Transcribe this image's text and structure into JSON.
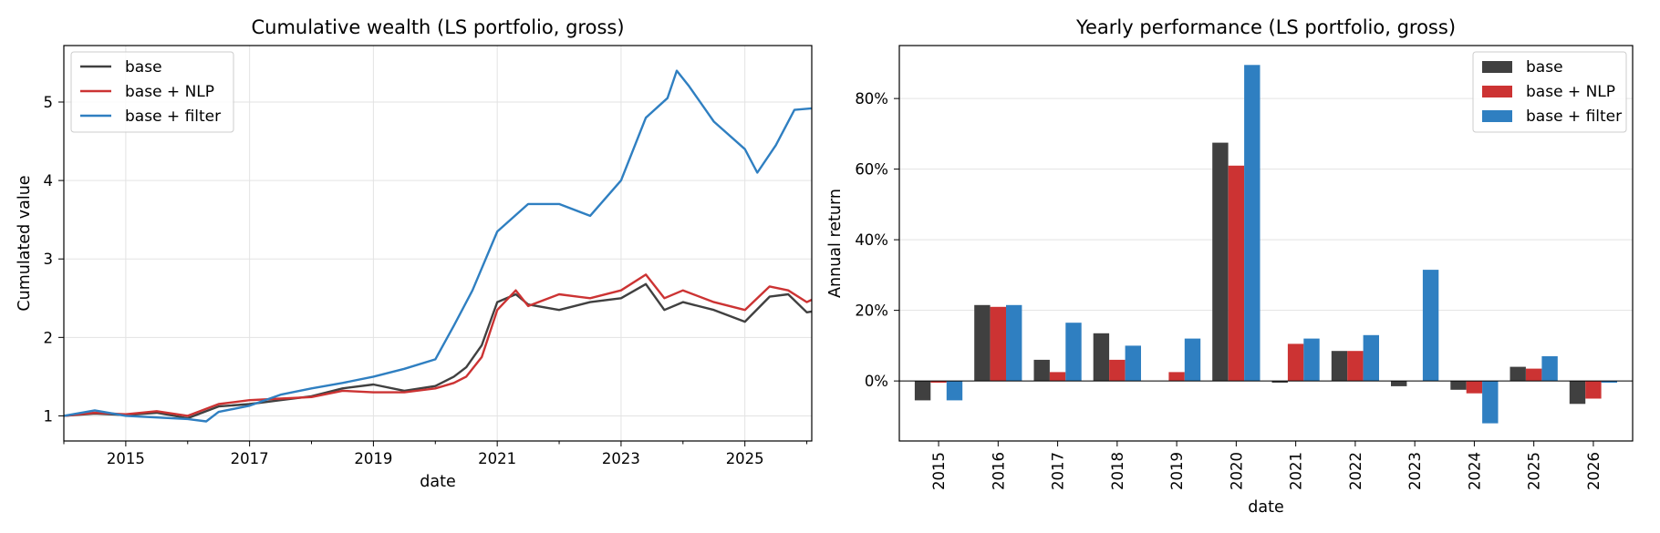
{
  "chart_data": [
    {
      "type": "line",
      "title": "Cumulative wealth (LS portfolio, gross)",
      "xlabel": "date",
      "ylabel": "Cumulated value",
      "xlim": [
        2014.0,
        2026.08
      ],
      "ylim": [
        0.68,
        5.72
      ],
      "xticks": [
        2015,
        2017,
        2019,
        2021,
        2023,
        2025
      ],
      "xtick_labels": [
        "2015",
        "2017",
        "2019",
        "2021",
        "2023",
        "2025"
      ],
      "yticks": [
        1,
        2,
        3,
        4,
        5
      ],
      "ytick_labels": [
        "1",
        "2",
        "3",
        "4",
        "5"
      ],
      "grid": true,
      "legend_position": "upper-left",
      "series": [
        {
          "name": "base",
          "color": "#404040",
          "points": [
            [
              2014.0,
              1.0
            ],
            [
              2014.5,
              1.03
            ],
            [
              2015.0,
              1.01
            ],
            [
              2015.5,
              1.04
            ],
            [
              2016.0,
              0.97
            ],
            [
              2016.5,
              1.12
            ],
            [
              2017.0,
              1.15
            ],
            [
              2017.5,
              1.2
            ],
            [
              2018.0,
              1.25
            ],
            [
              2018.5,
              1.35
            ],
            [
              2019.0,
              1.4
            ],
            [
              2019.5,
              1.32
            ],
            [
              2020.0,
              1.38
            ],
            [
              2020.3,
              1.5
            ],
            [
              2020.5,
              1.62
            ],
            [
              2020.75,
              1.9
            ],
            [
              2021.0,
              2.45
            ],
            [
              2021.3,
              2.55
            ],
            [
              2021.5,
              2.42
            ],
            [
              2022.0,
              2.35
            ],
            [
              2022.5,
              2.45
            ],
            [
              2023.0,
              2.5
            ],
            [
              2023.4,
              2.68
            ],
            [
              2023.7,
              2.35
            ],
            [
              2024.0,
              2.45
            ],
            [
              2024.5,
              2.35
            ],
            [
              2025.0,
              2.2
            ],
            [
              2025.4,
              2.52
            ],
            [
              2025.7,
              2.55
            ],
            [
              2026.0,
              2.32
            ],
            [
              2026.08,
              2.33
            ]
          ]
        },
        {
          "name": "base + NLP",
          "color": "#cc3333",
          "points": [
            [
              2014.0,
              1.0
            ],
            [
              2014.5,
              1.04
            ],
            [
              2015.0,
              1.02
            ],
            [
              2015.5,
              1.06
            ],
            [
              2016.0,
              1.0
            ],
            [
              2016.5,
              1.15
            ],
            [
              2017.0,
              1.2
            ],
            [
              2017.5,
              1.22
            ],
            [
              2018.0,
              1.24
            ],
            [
              2018.5,
              1.32
            ],
            [
              2019.0,
              1.3
            ],
            [
              2019.5,
              1.3
            ],
            [
              2020.0,
              1.35
            ],
            [
              2020.3,
              1.42
            ],
            [
              2020.5,
              1.5
            ],
            [
              2020.75,
              1.75
            ],
            [
              2021.0,
              2.35
            ],
            [
              2021.3,
              2.6
            ],
            [
              2021.5,
              2.4
            ],
            [
              2022.0,
              2.55
            ],
            [
              2022.5,
              2.5
            ],
            [
              2023.0,
              2.6
            ],
            [
              2023.4,
              2.8
            ],
            [
              2023.7,
              2.5
            ],
            [
              2024.0,
              2.6
            ],
            [
              2024.5,
              2.45
            ],
            [
              2025.0,
              2.35
            ],
            [
              2025.4,
              2.65
            ],
            [
              2025.7,
              2.6
            ],
            [
              2026.0,
              2.45
            ],
            [
              2026.08,
              2.48
            ]
          ]
        },
        {
          "name": "base + filter",
          "color": "#2f7fc1",
          "points": [
            [
              2014.0,
              1.0
            ],
            [
              2014.5,
              1.07
            ],
            [
              2015.0,
              1.0
            ],
            [
              2015.5,
              0.98
            ],
            [
              2016.0,
              0.96
            ],
            [
              2016.3,
              0.93
            ],
            [
              2016.5,
              1.05
            ],
            [
              2017.0,
              1.13
            ],
            [
              2017.5,
              1.27
            ],
            [
              2018.0,
              1.35
            ],
            [
              2018.5,
              1.42
            ],
            [
              2019.0,
              1.5
            ],
            [
              2019.5,
              1.6
            ],
            [
              2020.0,
              1.72
            ],
            [
              2020.3,
              2.15
            ],
            [
              2020.6,
              2.6
            ],
            [
              2021.0,
              3.35
            ],
            [
              2021.5,
              3.7
            ],
            [
              2022.0,
              3.7
            ],
            [
              2022.5,
              3.55
            ],
            [
              2023.0,
              4.0
            ],
            [
              2023.4,
              4.8
            ],
            [
              2023.75,
              5.05
            ],
            [
              2023.9,
              5.4
            ],
            [
              2024.1,
              5.2
            ],
            [
              2024.5,
              4.75
            ],
            [
              2025.0,
              4.4
            ],
            [
              2025.2,
              4.1
            ],
            [
              2025.5,
              4.45
            ],
            [
              2025.8,
              4.9
            ],
            [
              2026.08,
              4.92
            ]
          ]
        }
      ]
    },
    {
      "type": "bar",
      "title": "Yearly performance (LS portfolio, gross)",
      "xlabel": "date",
      "ylabel": "Annual return",
      "categories": [
        "2015",
        "2016",
        "2017",
        "2018",
        "2019",
        "2020",
        "2021",
        "2022",
        "2023",
        "2024",
        "2025",
        "2026"
      ],
      "ylim": [
        -17,
        95
      ],
      "yticks": [
        0,
        20,
        40,
        60,
        80
      ],
      "ytick_labels": [
        "0%",
        "20%",
        "40%",
        "60%",
        "80%"
      ],
      "grid": true,
      "legend_position": "upper-right",
      "series": [
        {
          "name": "base",
          "color": "#404040",
          "values": [
            -5.5,
            21.5,
            6.0,
            13.5,
            0.0,
            67.5,
            -0.5,
            8.5,
            -1.5,
            -2.5,
            4.0,
            -6.5
          ]
        },
        {
          "name": "base + NLP",
          "color": "#cc3333",
          "values": [
            -0.5,
            21.0,
            2.5,
            6.0,
            2.5,
            61.0,
            10.5,
            8.5,
            0.0,
            -3.5,
            3.5,
            -5.0
          ]
        },
        {
          "name": "base + filter",
          "color": "#2f7fc1",
          "values": [
            -5.5,
            21.5,
            16.5,
            10.0,
            12.0,
            89.5,
            12.0,
            13.0,
            31.5,
            -12.0,
            7.0,
            -0.5
          ]
        }
      ]
    }
  ]
}
